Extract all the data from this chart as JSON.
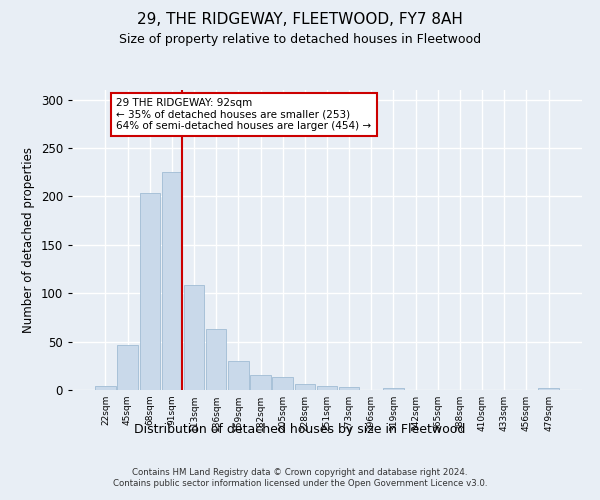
{
  "title": "29, THE RIDGEWAY, FLEETWOOD, FY7 8AH",
  "subtitle": "Size of property relative to detached houses in Fleetwood",
  "xlabel": "Distribution of detached houses by size in Fleetwood",
  "ylabel": "Number of detached properties",
  "footer_line1": "Contains HM Land Registry data © Crown copyright and database right 2024.",
  "footer_line2": "Contains public sector information licensed under the Open Government Licence v3.0.",
  "bar_labels": [
    "22sqm",
    "45sqm",
    "68sqm",
    "91sqm",
    "113sqm",
    "136sqm",
    "159sqm",
    "182sqm",
    "205sqm",
    "228sqm",
    "251sqm",
    "273sqm",
    "296sqm",
    "319sqm",
    "342sqm",
    "365sqm",
    "388sqm",
    "410sqm",
    "433sqm",
    "456sqm",
    "479sqm"
  ],
  "bar_values": [
    4,
    46,
    204,
    225,
    108,
    63,
    30,
    15,
    13,
    6,
    4,
    3,
    0,
    2,
    0,
    0,
    0,
    0,
    0,
    0,
    2
  ],
  "bar_color": "#c9d9ea",
  "bar_edge_color": "#a0bcd4",
  "background_color": "#e8eef5",
  "plot_bg_color": "#e8eef5",
  "grid_color": "#ffffff",
  "vline_color": "#cc0000",
  "vline_bar_index": 3,
  "annotation_text": "29 THE RIDGEWAY: 92sqm\n← 35% of detached houses are smaller (253)\n64% of semi-detached houses are larger (454) →",
  "annotation_box_color": "#ffffff",
  "annotation_box_edge": "#cc0000",
  "ylim": [
    0,
    310
  ],
  "yticks": [
    0,
    50,
    100,
    150,
    200,
    250,
    300
  ]
}
